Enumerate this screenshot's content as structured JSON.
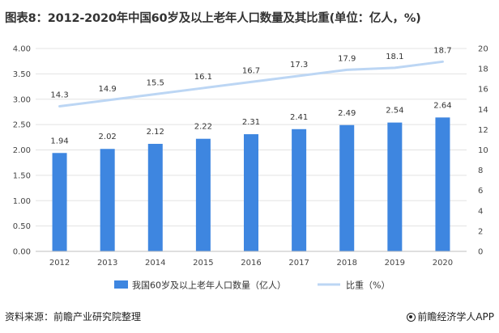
{
  "title": "图表8：2012-2020年中国60岁及以上老年人口数量及其比重(单位：亿人，%)",
  "footer": {
    "source": "资料来源：前瞻产业研究院整理",
    "brand": "前瞻经济学人APP",
    "brand_icon": "qianzhan-logo-icon"
  },
  "colors": {
    "bar": "#3E86E0",
    "line": "#BCD6F4",
    "grid": "#E3E3E3",
    "text": "#333333"
  },
  "chart_data": {
    "type": "bar",
    "title": "图表8：2012-2020年中国60岁及以上老年人口数量及其比重(单位：亿人，%)",
    "categories": [
      "2012",
      "2013",
      "2014",
      "2015",
      "2016",
      "2017",
      "2018",
      "2019",
      "2020"
    ],
    "series": [
      {
        "name": "我国60岁及以上老年人口数量（亿人）",
        "type": "bar",
        "axis": "left",
        "values": [
          1.94,
          2.02,
          2.12,
          2.22,
          2.31,
          2.41,
          2.49,
          2.54,
          2.64
        ],
        "labels": [
          "1.94",
          "2.02",
          "2.12",
          "2.22",
          "2.31",
          "2.41",
          "2.49",
          "2.54",
          "2.64"
        ]
      },
      {
        "name": "比重（%）",
        "type": "line",
        "axis": "right",
        "values": [
          14.3,
          14.9,
          15.5,
          16.1,
          16.7,
          17.3,
          17.9,
          18.1,
          18.7
        ],
        "labels": [
          "14.3",
          "14.9",
          "15.5",
          "16.1",
          "16.7",
          "17.3",
          "17.9",
          "18.1",
          "18.7"
        ]
      }
    ],
    "y_left": {
      "lim": [
        0,
        4
      ],
      "ticks": [
        "0.00",
        "0.50",
        "1.00",
        "1.50",
        "2.00",
        "2.50",
        "3.00",
        "3.50",
        "4.00"
      ]
    },
    "y_right": {
      "lim": [
        0,
        20
      ],
      "ticks": [
        "0",
        "2",
        "4",
        "6",
        "8",
        "10",
        "12",
        "14",
        "16",
        "18",
        "20"
      ]
    },
    "xlabel": "",
    "grid": true,
    "legend": "bottom"
  }
}
